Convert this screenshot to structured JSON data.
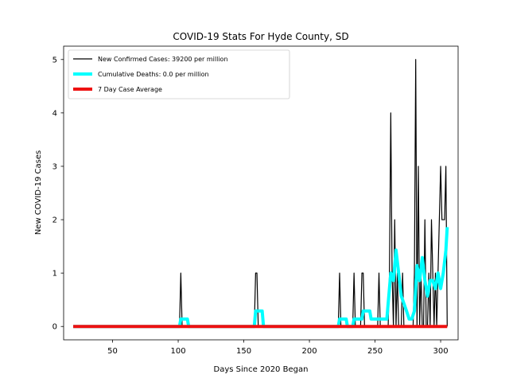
{
  "chart_data": {
    "type": "line",
    "title": "COVID-19 Stats For Hyde County, SD",
    "xlabel": "Days Since 2020 Began",
    "ylabel": "New COVID-19 Cases",
    "xlim": [
      12.7,
      313.3
    ],
    "ylim": [
      -0.25,
      5.25
    ],
    "xticks": [
      50,
      100,
      150,
      200,
      250,
      300
    ],
    "yticks": [
      0,
      1,
      2,
      3,
      4,
      5
    ],
    "grid": false,
    "legend_position": "upper-left",
    "series": [
      {
        "name": "New Confirmed Cases: 39200 per million",
        "color": "#000000",
        "x": [
          20,
          101,
          102,
          103,
          104,
          158,
          159,
          160,
          161,
          162,
          222,
          223,
          224,
          233,
          234,
          235,
          239,
          240,
          241,
          242,
          243,
          252,
          253,
          254,
          260,
          261,
          262,
          263,
          264,
          265,
          266,
          267,
          268,
          270,
          271,
          272,
          279,
          280,
          281,
          282,
          283,
          284,
          285,
          286,
          287,
          288,
          289,
          290,
          291,
          292,
          293,
          294,
          295,
          296,
          297,
          298,
          299,
          300,
          301,
          302,
          303,
          304,
          305
        ],
        "y": [
          0,
          0,
          1,
          0,
          0,
          0,
          1,
          1,
          0,
          0,
          0,
          1,
          0,
          0,
          1,
          0,
          0,
          1,
          1,
          0,
          0,
          0,
          1,
          0,
          0,
          1,
          4,
          1,
          0,
          2,
          0,
          1,
          0,
          0,
          1,
          0,
          0,
          1,
          5,
          0,
          3,
          0,
          1,
          0,
          0,
          2,
          0,
          0,
          1,
          0,
          2,
          1,
          0,
          1,
          0,
          1,
          2,
          3,
          2,
          2,
          2,
          3,
          0
        ]
      },
      {
        "name": "Cumulative Deaths: 0.0 per million",
        "color": "#00ffff",
        "x": [
          20,
          101,
          102,
          106,
          107,
          108,
          158,
          159,
          163,
          164,
          165,
          222,
          223,
          228,
          229,
          233,
          234,
          240,
          241,
          246,
          247,
          252,
          253,
          258,
          259,
          260,
          262,
          264,
          266,
          268,
          270,
          272,
          274,
          276,
          278,
          280,
          282,
          284,
          286,
          288,
          290,
          292,
          294,
          296,
          298,
          300,
          302,
          304,
          305
        ],
        "y": [
          0,
          0,
          0.14,
          0.14,
          0.14,
          0,
          0,
          0.29,
          0.29,
          0.29,
          0,
          0,
          0.14,
          0.14,
          0,
          0,
          0.14,
          0.14,
          0.29,
          0.29,
          0.14,
          0.14,
          0.14,
          0.14,
          0.14,
          0.43,
          1.0,
          0.86,
          1.43,
          1.0,
          0.57,
          0.43,
          0.29,
          0.14,
          0.14,
          0.29,
          1.14,
          0.86,
          1.29,
          0.86,
          0.57,
          0.86,
          0.86,
          0.71,
          1.0,
          0.71,
          1.0,
          1.43,
          1.86
        ]
      },
      {
        "name": "7 Day Case Average",
        "color": "#ee1111",
        "x": [
          20,
          305
        ],
        "y": [
          0,
          0
        ]
      }
    ]
  }
}
